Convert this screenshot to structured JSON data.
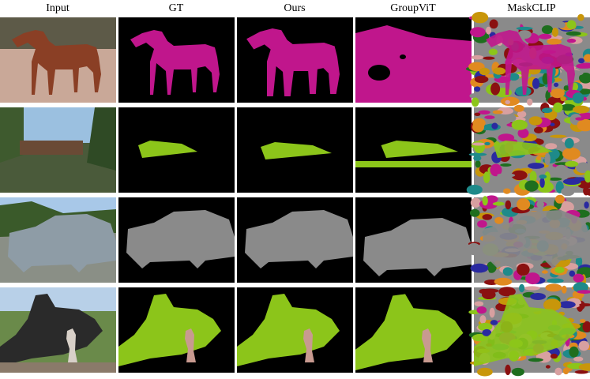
{
  "columns": [
    "Input",
    "GT",
    "Ours",
    "GroupViT",
    "MaskCLIP"
  ]
}
